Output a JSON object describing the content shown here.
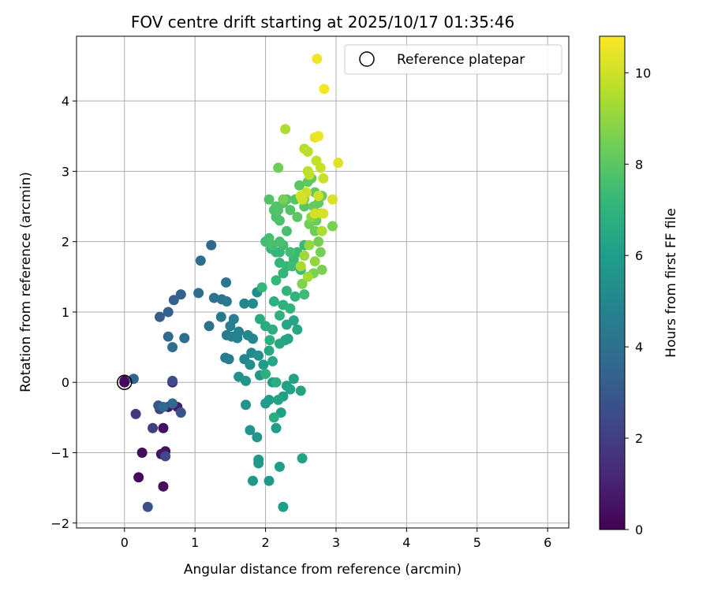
{
  "chart_data": {
    "type": "scatter",
    "title": "FOV centre drift starting at 2025/10/17 01:35:46",
    "xlabel": "Angular distance from reference (arcmin)",
    "ylabel": "Rotation from reference (arcmin)",
    "xlim": [
      -0.68,
      6.3
    ],
    "ylim": [
      -2.07,
      4.92
    ],
    "xticks": [
      0,
      1,
      2,
      3,
      4,
      5,
      6
    ],
    "yticks": [
      -2,
      -1,
      0,
      1,
      2,
      3,
      4
    ],
    "xtick_labels": [
      "0",
      "1",
      "2",
      "3",
      "4",
      "5",
      "6"
    ],
    "ytick_labels": [
      "−2",
      "−1",
      "0",
      "1",
      "2",
      "3",
      "4"
    ],
    "grid": true,
    "legend": {
      "position": "top-right",
      "entries": [
        "Reference platepar"
      ]
    },
    "reference_point": {
      "x": 0,
      "y": 0
    },
    "colorbar": {
      "label": "Hours from first FF file",
      "range": [
        0,
        10.8
      ],
      "ticks": [
        0,
        2,
        4,
        6,
        8,
        10
      ],
      "tick_labels": [
        "0",
        "2",
        "4",
        "6",
        "8",
        "10"
      ],
      "colormap": "viridis",
      "colors": [
        "#440154",
        "#482878",
        "#3e4989",
        "#31688e",
        "#26828e",
        "#1f9e89",
        "#35b779",
        "#6ece58",
        "#b5de2b",
        "#fde725"
      ]
    },
    "points": [
      [
        0.0,
        0.0,
        0.0
      ],
      [
        0.2,
        -1.35,
        0.2
      ],
      [
        0.25,
        -1.0,
        0.3
      ],
      [
        0.55,
        -1.48,
        0.3
      ],
      [
        0.55,
        -0.65,
        0.4
      ],
      [
        0.58,
        -0.98,
        0.5
      ],
      [
        0.52,
        -1.02,
        0.6
      ],
      [
        0.68,
        0.0,
        0.7
      ],
      [
        0.62,
        -0.35,
        0.8
      ],
      [
        0.75,
        -0.35,
        0.9
      ],
      [
        0.0,
        0.02,
        0.3
      ],
      [
        0.16,
        -0.45,
        1.8
      ],
      [
        0.4,
        -0.65,
        2.0
      ],
      [
        0.5,
        -0.38,
        2.1
      ],
      [
        0.58,
        -1.05,
        2.4
      ],
      [
        0.33,
        -1.77,
        2.7
      ],
      [
        0.48,
        -0.33,
        2.9
      ],
      [
        0.68,
        0.02,
        2.6
      ],
      [
        0.8,
        -0.43,
        2.8
      ],
      [
        0.5,
        0.93,
        3.2
      ],
      [
        0.62,
        1.0,
        3.3
      ],
      [
        0.7,
        1.17,
        3.3
      ],
      [
        0.8,
        1.25,
        3.4
      ],
      [
        0.13,
        0.05,
        3.5
      ],
      [
        0.55,
        -0.35,
        3.6
      ],
      [
        0.68,
        -0.3,
        3.6
      ],
      [
        1.23,
        1.95,
        3.7
      ],
      [
        1.08,
        1.73,
        3.8
      ],
      [
        0.62,
        0.65,
        3.8
      ],
      [
        0.68,
        0.5,
        3.9
      ],
      [
        0.85,
        0.63,
        3.9
      ],
      [
        1.05,
        1.27,
        3.9
      ],
      [
        1.2,
        0.8,
        4.0
      ],
      [
        1.27,
        1.2,
        4.1
      ],
      [
        1.38,
        1.18,
        4.2
      ],
      [
        1.44,
        1.42,
        4.2
      ],
      [
        1.45,
        1.15,
        4.3
      ],
      [
        1.45,
        0.67,
        4.4
      ],
      [
        1.37,
        0.93,
        4.4
      ],
      [
        1.43,
        0.35,
        4.5
      ],
      [
        1.48,
        0.33,
        4.6
      ],
      [
        1.55,
        0.9,
        4.6
      ],
      [
        1.5,
        0.8,
        4.7
      ],
      [
        1.52,
        0.65,
        4.7
      ],
      [
        1.6,
        0.63,
        4.8
      ],
      [
        1.62,
        0.72,
        4.8
      ],
      [
        1.7,
        1.12,
        4.9
      ],
      [
        1.7,
        0.33,
        4.9
      ],
      [
        1.75,
        0.67,
        5.0
      ],
      [
        1.82,
        0.62,
        5.0
      ],
      [
        1.8,
        0.42,
        5.1
      ],
      [
        1.82,
        1.12,
        5.2
      ],
      [
        1.88,
        1.28,
        5.3
      ],
      [
        1.78,
        0.25,
        5.3
      ],
      [
        1.9,
        0.38,
        5.4
      ],
      [
        1.62,
        0.08,
        5.4
      ],
      [
        1.72,
        0.02,
        5.6
      ],
      [
        1.78,
        -0.68,
        5.6
      ],
      [
        1.72,
        -0.32,
        5.6
      ],
      [
        1.88,
        -0.78,
        5.7
      ],
      [
        1.82,
        -1.4,
        5.7
      ],
      [
        1.9,
        -1.1,
        5.7
      ],
      [
        1.9,
        -1.15,
        5.8
      ],
      [
        2.05,
        -1.4,
        5.8
      ],
      [
        1.92,
        0.1,
        5.8
      ],
      [
        1.97,
        0.25,
        5.9
      ],
      [
        2.0,
        -0.3,
        5.9
      ],
      [
        2.05,
        -0.25,
        5.9
      ],
      [
        2.1,
        0.0,
        6.0
      ],
      [
        2.15,
        -0.65,
        6.0
      ],
      [
        2.2,
        -1.2,
        6.0
      ],
      [
        2.25,
        -1.77,
        6.0
      ],
      [
        2.22,
        -0.43,
        6.1
      ],
      [
        2.25,
        -0.2,
        6.1
      ],
      [
        2.3,
        -0.05,
        6.1
      ],
      [
        2.35,
        -0.1,
        6.2
      ],
      [
        2.4,
        0.05,
        6.2
      ],
      [
        2.5,
        -0.12,
        6.2
      ],
      [
        2.52,
        -1.08,
        6.3
      ],
      [
        2.18,
        -0.25,
        6.3
      ],
      [
        2.28,
        0.6,
        6.3
      ],
      [
        2.32,
        0.62,
        6.3
      ],
      [
        2.45,
        0.75,
        6.4
      ],
      [
        2.4,
        0.88,
        6.4
      ],
      [
        2.3,
        0.82,
        6.4
      ],
      [
        2.2,
        0.55,
        6.5
      ],
      [
        2.1,
        0.3,
        6.5
      ],
      [
        2.05,
        0.45,
        6.5
      ],
      [
        1.92,
        0.9,
        6.6
      ],
      [
        2.0,
        0.8,
        6.6
      ],
      [
        2.1,
        0.75,
        6.7
      ],
      [
        2.15,
        0.0,
        6.7
      ],
      [
        2.12,
        -0.5,
        6.7
      ],
      [
        2.0,
        0.12,
        6.8
      ],
      [
        2.06,
        0.6,
        6.8
      ],
      [
        2.12,
        1.15,
        6.8
      ],
      [
        2.2,
        0.95,
        6.9
      ],
      [
        2.25,
        1.1,
        6.9
      ],
      [
        2.35,
        1.05,
        7.0
      ],
      [
        2.42,
        1.22,
        7.0
      ],
      [
        2.3,
        1.3,
        7.0
      ],
      [
        2.25,
        1.55,
        7.1
      ],
      [
        2.2,
        1.7,
        7.1
      ],
      [
        2.15,
        1.85,
        7.1
      ],
      [
        2.08,
        1.9,
        7.1
      ],
      [
        2.15,
        1.45,
        7.2
      ],
      [
        1.95,
        1.35,
        7.2
      ],
      [
        2.2,
        1.85,
        7.2
      ],
      [
        2.3,
        1.65,
        7.2
      ],
      [
        2.4,
        1.75,
        7.3
      ],
      [
        2.45,
        1.85,
        7.3
      ],
      [
        2.55,
        1.95,
        7.3
      ],
      [
        2.5,
        1.6,
        7.4
      ],
      [
        2.52,
        1.4,
        7.4
      ],
      [
        2.55,
        1.25,
        7.4
      ],
      [
        2.38,
        1.65,
        7.4
      ],
      [
        2.35,
        1.85,
        7.5
      ],
      [
        2.25,
        1.95,
        7.5
      ],
      [
        2.0,
        2.0,
        7.5
      ],
      [
        2.05,
        2.05,
        7.6
      ],
      [
        2.1,
        1.95,
        7.6
      ],
      [
        2.2,
        2.0,
        7.6
      ],
      [
        2.3,
        2.15,
        7.6
      ],
      [
        2.2,
        2.3,
        7.7
      ],
      [
        2.15,
        2.35,
        7.7
      ],
      [
        2.12,
        2.45,
        7.7
      ],
      [
        2.05,
        2.6,
        7.8
      ],
      [
        2.15,
        2.5,
        7.8
      ],
      [
        2.18,
        2.45,
        7.8
      ],
      [
        2.25,
        2.55,
        7.8
      ],
      [
        2.3,
        2.6,
        7.9
      ],
      [
        2.35,
        2.45,
        7.9
      ],
      [
        2.42,
        2.6,
        7.9
      ],
      [
        2.45,
        2.35,
        8.0
      ],
      [
        2.48,
        2.8,
        8.0
      ],
      [
        2.55,
        2.5,
        8.0
      ],
      [
        2.6,
        2.85,
        8.1
      ],
      [
        2.65,
        2.9,
        8.1
      ],
      [
        2.7,
        2.7,
        8.1
      ],
      [
        2.68,
        2.5,
        8.2
      ],
      [
        2.75,
        2.55,
        8.2
      ],
      [
        2.8,
        2.65,
        8.3
      ],
      [
        2.72,
        2.3,
        8.3
      ],
      [
        2.62,
        2.25,
        8.4
      ],
      [
        2.7,
        2.15,
        8.4
      ],
      [
        2.75,
        2.0,
        8.5
      ],
      [
        2.78,
        1.85,
        8.5
      ],
      [
        2.8,
        1.6,
        8.6
      ],
      [
        2.68,
        1.55,
        8.6
      ],
      [
        2.95,
        2.22,
        8.6
      ],
      [
        2.52,
        1.4,
        8.7
      ],
      [
        2.18,
        3.05,
        8.4
      ],
      [
        2.25,
        2.6,
        8.5
      ],
      [
        2.55,
        2.6,
        8.8
      ],
      [
        2.65,
        2.35,
        8.9
      ],
      [
        2.7,
        1.72,
        9.0
      ],
      [
        2.62,
        1.95,
        9.1
      ],
      [
        2.55,
        1.8,
        9.2
      ],
      [
        2.6,
        1.5,
        9.3
      ],
      [
        2.5,
        1.65,
        9.4
      ],
      [
        2.8,
        2.15,
        9.5
      ],
      [
        2.78,
        2.4,
        9.5
      ],
      [
        2.28,
        3.6,
        9.5
      ],
      [
        2.55,
        3.32,
        9.6
      ],
      [
        2.6,
        3.28,
        9.7
      ],
      [
        2.6,
        3.0,
        9.7
      ],
      [
        2.62,
        2.95,
        9.8
      ],
      [
        2.72,
        3.15,
        9.8
      ],
      [
        2.78,
        3.05,
        9.9
      ],
      [
        2.82,
        2.9,
        9.9
      ],
      [
        2.75,
        2.65,
        10.0
      ],
      [
        2.58,
        2.7,
        10.0
      ],
      [
        2.52,
        2.6,
        10.0
      ],
      [
        2.5,
        2.65,
        10.1
      ],
      [
        2.7,
        2.4,
        10.1
      ],
      [
        2.82,
        2.4,
        10.2
      ],
      [
        2.95,
        2.6,
        10.2
      ],
      [
        3.03,
        3.12,
        10.3
      ],
      [
        2.7,
        3.48,
        10.4
      ],
      [
        2.75,
        3.5,
        10.5
      ],
      [
        2.73,
        4.6,
        10.6
      ],
      [
        2.83,
        4.17,
        10.7
      ]
    ]
  }
}
